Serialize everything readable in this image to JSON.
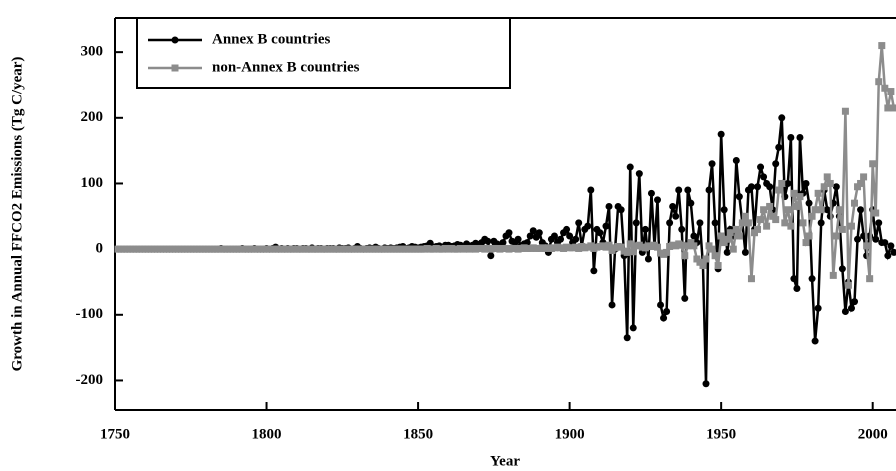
{
  "chart_data": {
    "type": "line",
    "x_label": "Year",
    "y_label": "Growth in Annual FFCO2 Emissions (Tg C/year)",
    "x": [
      1751,
      1752,
      1753,
      1754,
      1755,
      1756,
      1757,
      1758,
      1759,
      1760,
      1761,
      1762,
      1763,
      1764,
      1765,
      1766,
      1767,
      1768,
      1769,
      1770,
      1771,
      1772,
      1773,
      1774,
      1775,
      1776,
      1777,
      1778,
      1779,
      1780,
      1781,
      1782,
      1783,
      1784,
      1785,
      1786,
      1787,
      1788,
      1789,
      1790,
      1791,
      1792,
      1793,
      1794,
      1795,
      1796,
      1797,
      1798,
      1799,
      1800,
      1801,
      1802,
      1803,
      1804,
      1805,
      1806,
      1807,
      1808,
      1809,
      1810,
      1811,
      1812,
      1813,
      1814,
      1815,
      1816,
      1817,
      1818,
      1819,
      1820,
      1821,
      1822,
      1823,
      1824,
      1825,
      1826,
      1827,
      1828,
      1829,
      1830,
      1831,
      1832,
      1833,
      1834,
      1835,
      1836,
      1837,
      1838,
      1839,
      1840,
      1841,
      1842,
      1843,
      1844,
      1845,
      1846,
      1847,
      1848,
      1849,
      1850,
      1851,
      1852,
      1853,
      1854,
      1855,
      1856,
      1857,
      1858,
      1859,
      1860,
      1861,
      1862,
      1863,
      1864,
      1865,
      1866,
      1867,
      1868,
      1869,
      1870,
      1871,
      1872,
      1873,
      1874,
      1875,
      1876,
      1877,
      1878,
      1879,
      1880,
      1881,
      1882,
      1883,
      1884,
      1885,
      1886,
      1887,
      1888,
      1889,
      1890,
      1891,
      1892,
      1893,
      1894,
      1895,
      1896,
      1897,
      1898,
      1899,
      1900,
      1901,
      1902,
      1903,
      1904,
      1905,
      1906,
      1907,
      1908,
      1909,
      1910,
      1911,
      1912,
      1913,
      1914,
      1915,
      1916,
      1917,
      1918,
      1919,
      1920,
      1921,
      1922,
      1923,
      1924,
      1925,
      1926,
      1927,
      1928,
      1929,
      1930,
      1931,
      1932,
      1933,
      1934,
      1935,
      1936,
      1937,
      1938,
      1939,
      1940,
      1941,
      1942,
      1943,
      1944,
      1945,
      1946,
      1947,
      1948,
      1949,
      1950,
      1951,
      1952,
      1953,
      1954,
      1955,
      1956,
      1957,
      1958,
      1959,
      1960,
      1961,
      1962,
      1963,
      1964,
      1965,
      1966,
      1967,
      1968,
      1969,
      1970,
      1971,
      1972,
      1973,
      1974,
      1975,
      1976,
      1977,
      1978,
      1979,
      1980,
      1981,
      1982,
      1983,
      1984,
      1985,
      1986,
      1987,
      1988,
      1989,
      1990,
      1991,
      1992,
      1993,
      1994,
      1995,
      1996,
      1997,
      1998,
      1999,
      2000,
      2001,
      2002,
      2003,
      2004,
      2005,
      2006,
      2007
    ],
    "series": [
      {
        "name": "Annex B countries",
        "color": "#000000",
        "marker": "circle",
        "values": [
          0,
          0,
          0,
          0,
          0,
          0,
          0,
          0,
          0,
          0,
          0,
          0,
          0,
          0,
          0,
          0,
          0,
          0,
          0,
          0,
          0,
          0,
          0,
          0,
          0,
          0,
          0,
          0,
          0,
          0,
          0,
          0,
          0,
          0,
          1,
          0,
          0,
          0,
          0,
          0,
          0,
          1,
          0,
          0,
          0,
          1,
          0,
          0,
          0,
          1,
          0,
          1,
          3,
          0,
          1,
          0,
          1,
          0,
          1,
          1,
          0,
          1,
          1,
          0,
          2,
          0,
          1,
          1,
          0,
          1,
          1,
          1,
          0,
          2,
          1,
          1,
          2,
          0,
          1,
          4,
          1,
          0,
          1,
          2,
          1,
          3,
          1,
          0,
          2,
          1,
          2,
          1,
          2,
          3,
          4,
          1,
          2,
          4,
          3,
          2,
          3,
          4,
          5,
          9,
          3,
          4,
          5,
          2,
          6,
          6,
          4,
          5,
          7,
          6,
          3,
          8,
          5,
          6,
          9,
          7,
          10,
          15,
          12,
          -10,
          12,
          8,
          5,
          10,
          20,
          25,
          12,
          10,
          15,
          5,
          8,
          10,
          20,
          28,
          18,
          25,
          10,
          5,
          -5,
          15,
          20,
          10,
          15,
          25,
          30,
          20,
          10,
          15,
          40,
          5,
          30,
          35,
          90,
          -33,
          30,
          25,
          10,
          35,
          65,
          -85,
          0,
          65,
          60,
          -10,
          -135,
          125,
          -120,
          40,
          115,
          -5,
          30,
          -15,
          85,
          5,
          75,
          -85,
          -105,
          -95,
          40,
          65,
          50,
          90,
          30,
          -75,
          90,
          70,
          20,
          10,
          40,
          -25,
          -205,
          90,
          130,
          40,
          -30,
          175,
          60,
          -5,
          30,
          20,
          135,
          80,
          40,
          -5,
          90,
          95,
          30,
          95,
          125,
          110,
          100,
          95,
          60,
          130,
          155,
          200,
          80,
          100,
          170,
          -45,
          -60,
          170,
          85,
          100,
          70,
          -45,
          -140,
          -90,
          40,
          90,
          60,
          50,
          70,
          95,
          50,
          -30,
          -95,
          -50,
          -90,
          -80,
          15,
          60,
          20,
          -10,
          20,
          60,
          15,
          40,
          10,
          10,
          -10,
          5,
          -5
        ]
      },
      {
        "name": "non-Annex B countries",
        "color": "#8c8c8c",
        "marker": "square",
        "values": [
          0,
          0,
          0,
          0,
          0,
          0,
          0,
          0,
          0,
          0,
          0,
          0,
          0,
          0,
          0,
          0,
          0,
          0,
          0,
          0,
          0,
          0,
          0,
          0,
          0,
          0,
          0,
          0,
          0,
          0,
          0,
          0,
          0,
          0,
          0,
          0,
          0,
          0,
          0,
          0,
          0,
          0,
          0,
          0,
          0,
          0,
          0,
          0,
          0,
          0,
          0,
          0,
          0,
          0,
          0,
          0,
          0,
          0,
          0,
          0,
          0,
          0,
          0,
          0,
          0,
          0,
          0,
          0,
          0,
          0,
          0,
          0,
          0,
          0,
          0,
          0,
          0,
          0,
          0,
          0,
          0,
          0,
          0,
          0,
          0,
          0,
          0,
          0,
          0,
          0,
          0,
          0,
          0,
          0,
          0,
          0,
          0,
          0,
          0,
          0,
          0,
          0,
          1,
          0,
          0,
          1,
          0,
          0,
          1,
          0,
          1,
          0,
          0,
          1,
          0,
          1,
          0,
          1,
          0,
          1,
          1,
          0,
          1,
          0,
          1,
          1,
          0,
          1,
          1,
          0,
          1,
          1,
          0,
          1,
          2,
          1,
          1,
          2,
          1,
          1,
          2,
          1,
          2,
          1,
          2,
          3,
          2,
          1,
          3,
          2,
          2,
          3,
          1,
          4,
          2,
          3,
          5,
          1,
          3,
          4,
          5,
          3,
          6,
          -2,
          2,
          4,
          3,
          -3,
          -5,
          8,
          -4,
          5,
          6,
          3,
          2,
          5,
          4,
          6,
          3,
          -6,
          -8,
          -5,
          4,
          6,
          5,
          8,
          6,
          -10,
          5,
          10,
          5,
          -15,
          -20,
          -25,
          -15,
          5,
          0,
          -10,
          -25,
          20,
          10,
          15,
          25,
          0,
          30,
          20,
          40,
          50,
          40,
          -45,
          25,
          30,
          45,
          60,
          35,
          65,
          50,
          45,
          90,
          100,
          40,
          60,
          35,
          85,
          65,
          80,
          40,
          10,
          20,
          50,
          60,
          85,
          60,
          95,
          110,
          100,
          -40,
          20,
          60,
          30,
          210,
          -55,
          35,
          70,
          95,
          100,
          110,
          5,
          -45,
          130,
          55,
          255,
          310,
          245,
          215,
          240,
          215
        ]
      }
    ],
    "xlim": [
      1750,
      2010
    ],
    "xticks": [
      1750,
      1800,
      1850,
      1900,
      1950,
      2000
    ],
    "ylim": [
      -245,
      352
    ],
    "yticks": [
      -200,
      -100,
      0,
      100,
      200,
      300
    ]
  }
}
